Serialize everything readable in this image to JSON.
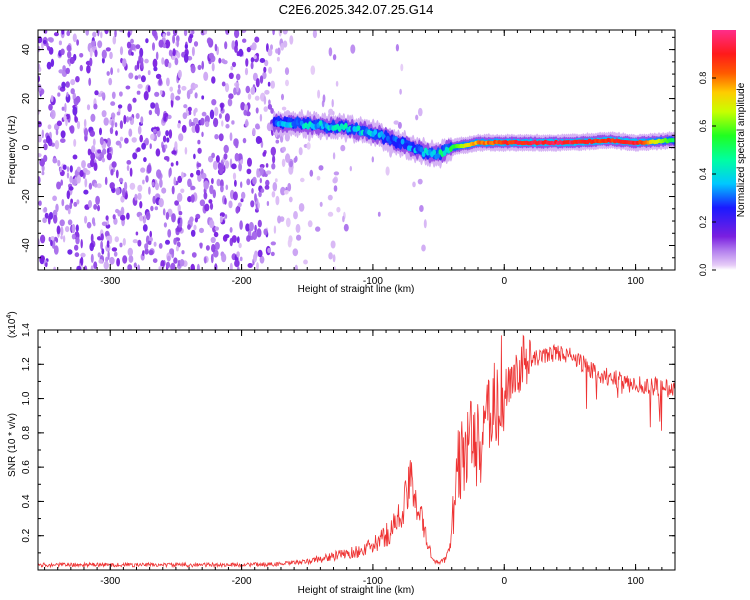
{
  "figure_title": "C2E6.2025.342.07.25.G14",
  "colors": {
    "snr_line": "#ee3333",
    "axis": "#000000",
    "background": "#ffffff"
  },
  "chart_data": [
    {
      "type": "heatmap",
      "title": "C2E6.2025.342.07.25.G14",
      "xlabel": "Height of straight line (km)",
      "ylabel": "Frequency (Hz)",
      "xlim": [
        -355,
        130
      ],
      "ylim": [
        -50,
        48
      ],
      "x_ticks": [
        -300,
        -200,
        -100,
        0,
        100
      ],
      "x_tick_labels": [
        "-300",
        "-200",
        "-100",
        "0",
        "100"
      ],
      "y_ticks": [
        -40,
        -20,
        0,
        20,
        40
      ],
      "y_tick_labels": [
        "-40",
        "-20",
        "0",
        "20",
        "40"
      ],
      "colorbar": {
        "label": "Normalized spectral amplitude",
        "range": [
          0,
          1
        ],
        "ticks": [
          0.0,
          0.2,
          0.4,
          0.6,
          0.8
        ],
        "tick_labels": [
          "0.0",
          "0.2",
          "0.4",
          "0.6",
          "0.8"
        ],
        "colormap": "rainbow: purple (0) - blue - cyan - green - yellow - red - magenta (1)"
      },
      "description_of_signal": "Broadband noise from -355 to about -170 km; a narrow band starting near +10 Hz at -170 km drifting to about 0 Hz near -60 km, then a steady carrier near +2 Hz up to 130 km.",
      "ridge": {
        "x": [
          -175,
          -160,
          -140,
          -120,
          -100,
          -85,
          -70,
          -60,
          -50,
          -40,
          -30,
          -20,
          -10,
          0,
          20,
          50,
          80,
          100,
          130
        ],
        "frequency": [
          10,
          10,
          9,
          8,
          6,
          3,
          0,
          -2,
          -3,
          0,
          1,
          2,
          2,
          2,
          2,
          2,
          3,
          2,
          3
        ],
        "amplitude": [
          0.3,
          0.4,
          0.4,
          0.4,
          0.4,
          0.3,
          0.35,
          0.4,
          0.45,
          0.55,
          0.7,
          0.8,
          0.85,
          0.9,
          0.95,
          0.95,
          0.9,
          0.95,
          0.5
        ]
      }
    },
    {
      "type": "line",
      "xlabel": "Height of straight line (km)",
      "ylabel": "SNR (10 * v/v)",
      "y_multiplier": "(x10",
      "y_multiplier_exp": "4",
      "y_multiplier_close": ")",
      "xlim": [
        -355,
        130
      ],
      "ylim": [
        0,
        1.4
      ],
      "x_ticks": [
        -300,
        -200,
        -100,
        0,
        100
      ],
      "x_tick_labels": [
        "-300",
        "-200",
        "-100",
        "0",
        "100"
      ],
      "y_ticks": [
        0.2,
        0.4,
        0.6,
        0.8,
        1.0,
        1.2,
        1.4
      ],
      "y_tick_labels": [
        "0.2",
        "0.4",
        "0.6",
        "0.8",
        "1.0",
        "1.2",
        "1.4"
      ],
      "series": [
        {
          "name": "SNR",
          "x": [
            -355,
            -300,
            -250,
            -200,
            -170,
            -150,
            -130,
            -110,
            -100,
            -90,
            -80,
            -70,
            -60,
            -55,
            -50,
            -45,
            -40,
            -35,
            -30,
            -25,
            -20,
            -15,
            -10,
            -5,
            0,
            5,
            10,
            15,
            20,
            30,
            40,
            50,
            60,
            70,
            80,
            90,
            100,
            110,
            120,
            130
          ],
          "values": [
            0.03,
            0.03,
            0.03,
            0.03,
            0.035,
            0.05,
            0.08,
            0.11,
            0.14,
            0.2,
            0.3,
            0.52,
            0.2,
            0.07,
            0.04,
            0.06,
            0.2,
            0.6,
            0.7,
            0.75,
            0.72,
            0.8,
            0.9,
            1.0,
            1.05,
            1.1,
            1.15,
            1.2,
            1.22,
            1.25,
            1.27,
            1.25,
            1.2,
            1.15,
            1.12,
            1.1,
            1.08,
            1.08,
            1.06,
            1.05
          ]
        }
      ]
    }
  ]
}
